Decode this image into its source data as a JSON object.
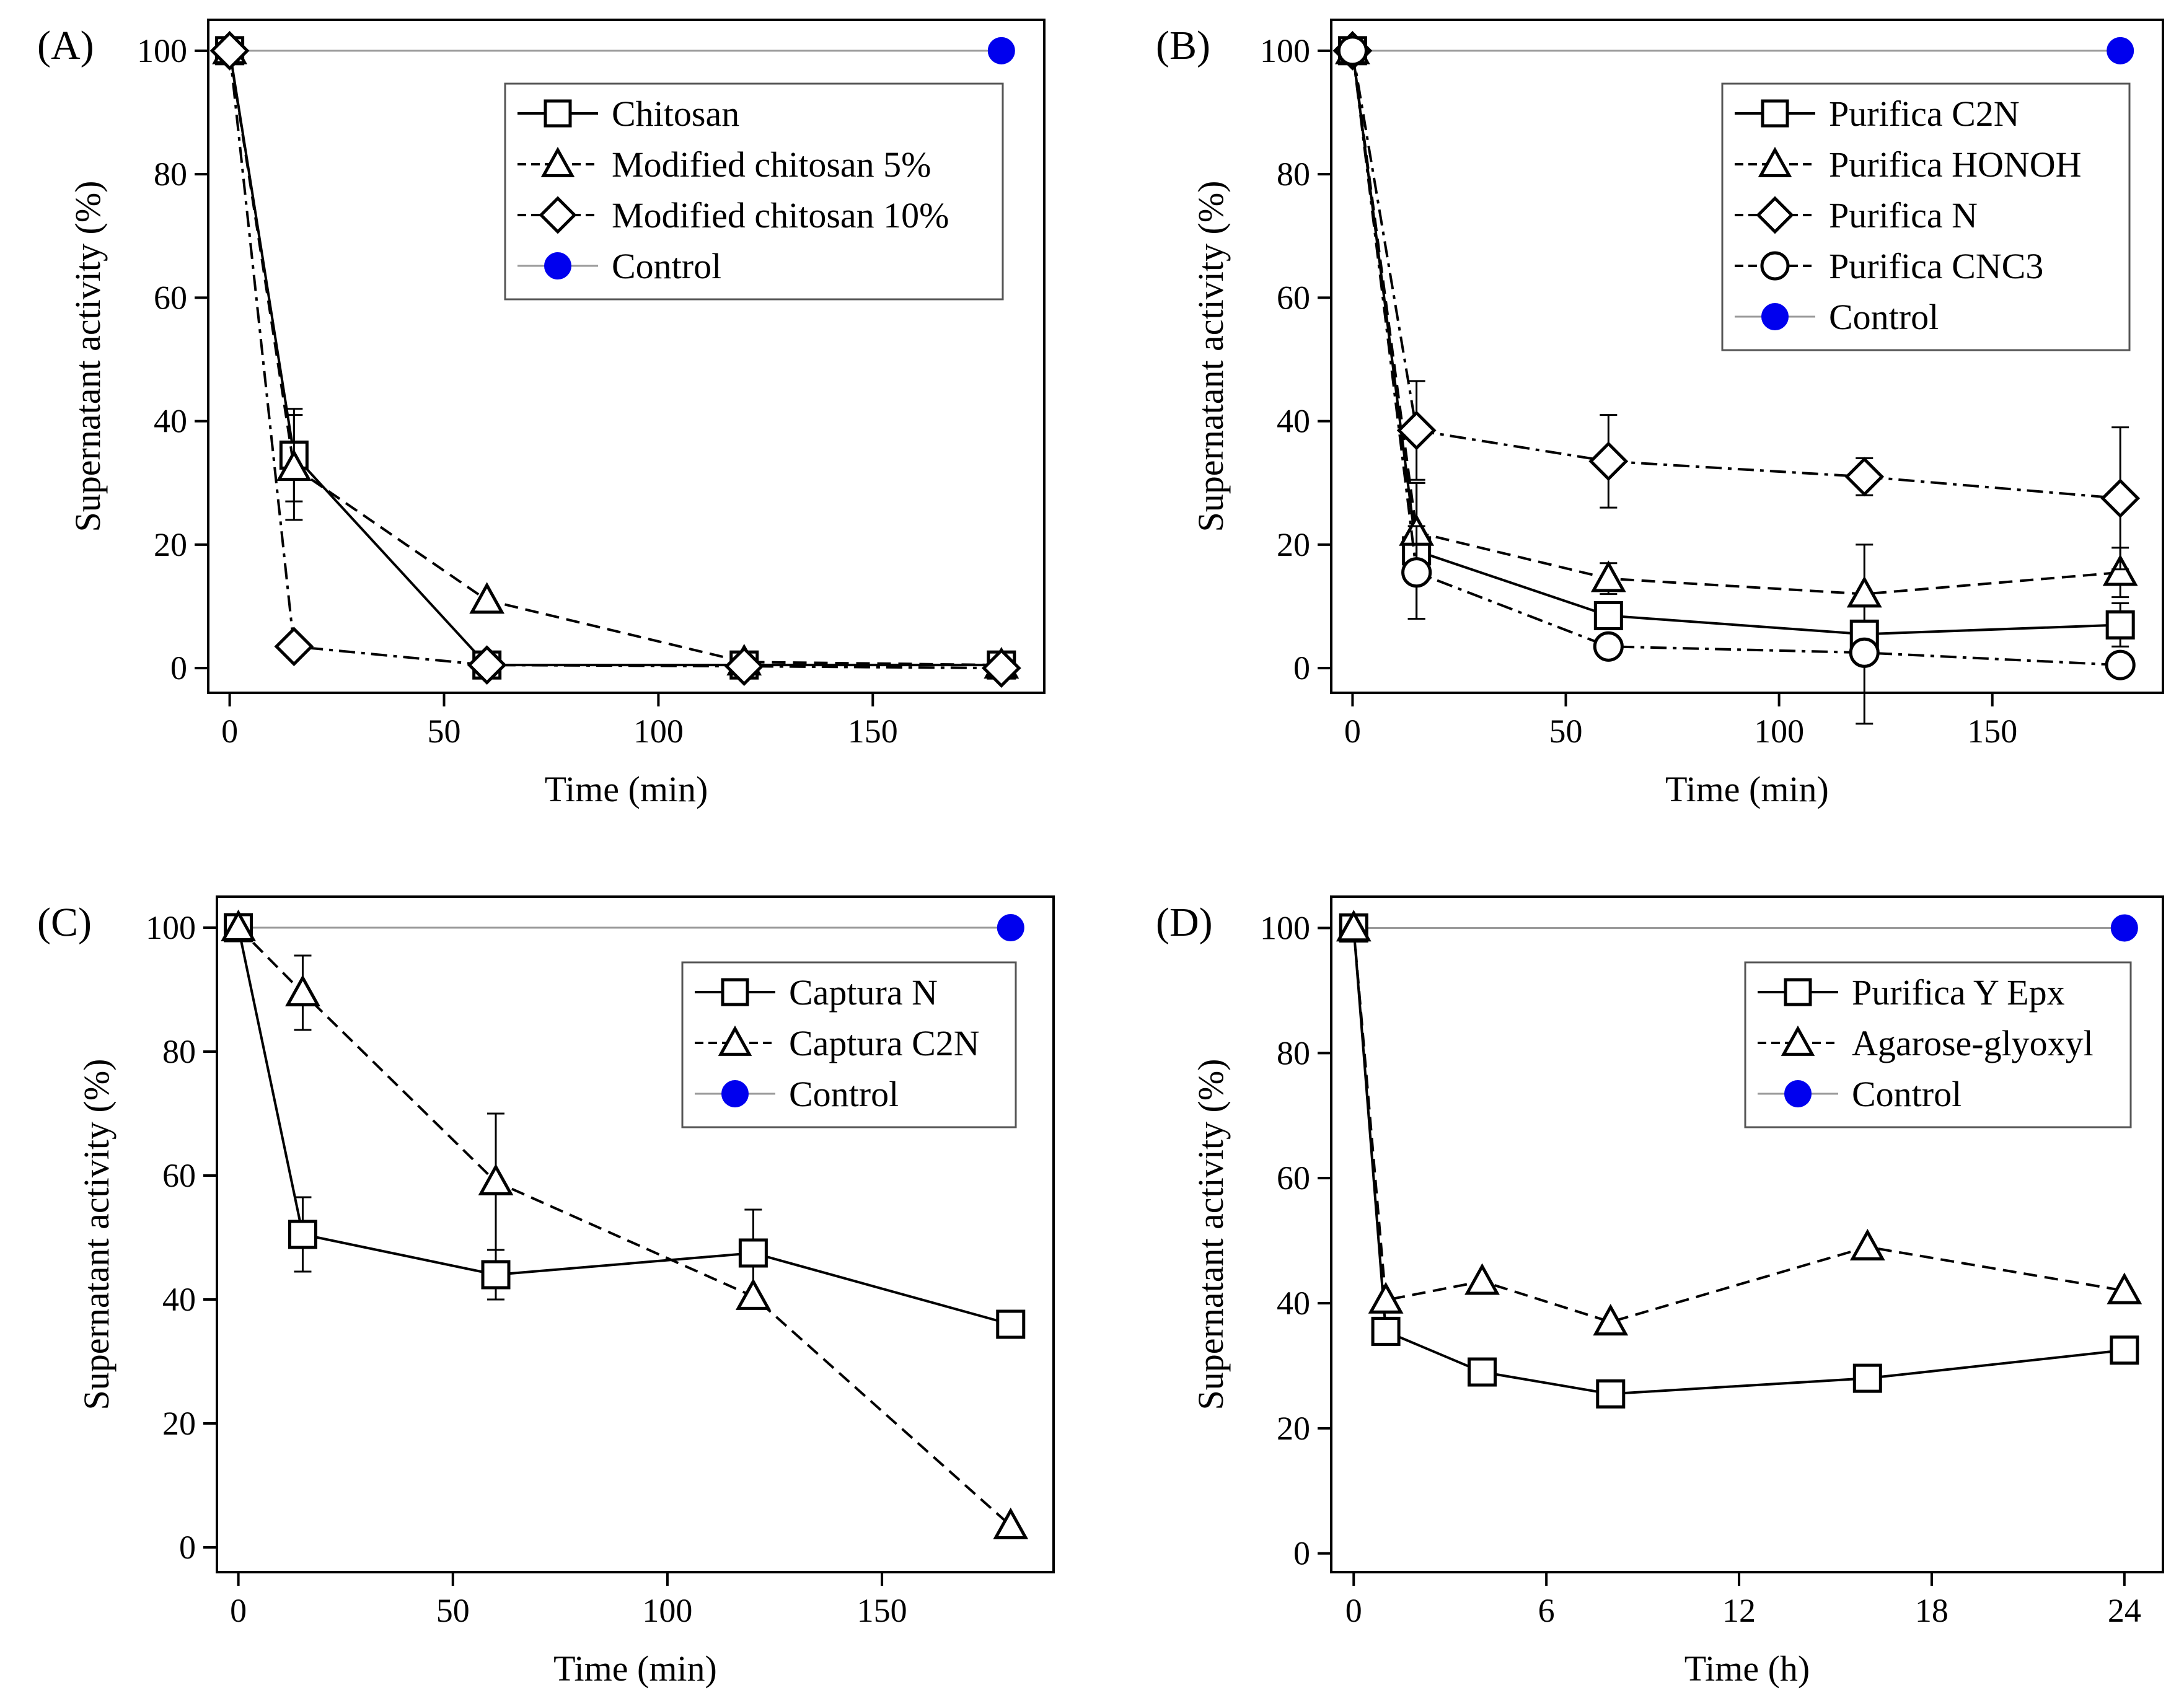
{
  "figure": {
    "panels": [
      "A",
      "B",
      "C",
      "D"
    ]
  },
  "colors": {
    "control": "#0000ee",
    "control_line": "#9a9a9a",
    "axis": "#000000",
    "marker_fill": "#ffffff"
  },
  "chart_data": [
    {
      "type": "line",
      "panel_label": "(A)",
      "xlabel": "Time (min)",
      "ylabel": "Supernatant activity (%)",
      "xlim": [
        -5,
        190
      ],
      "ylim": [
        -4,
        105
      ],
      "xticks": [
        0,
        50,
        100,
        150
      ],
      "yticks": [
        0,
        20,
        40,
        60,
        80,
        100
      ],
      "legend_position": "top-right",
      "series": [
        {
          "name": "Chitosan",
          "marker": "square",
          "line": "solid",
          "x": [
            0,
            15,
            60,
            120,
            180
          ],
          "y": [
            100,
            34.5,
            0.5,
            0.5,
            0.5
          ],
          "err": [
            0,
            7.5,
            0,
            0,
            0
          ]
        },
        {
          "name": "Modified chitosan 5%",
          "marker": "triangle",
          "line": "dashed",
          "x": [
            0,
            15,
            60,
            120,
            180
          ],
          "y": [
            100,
            32.5,
            11,
            1,
            0.5
          ],
          "err": [
            0,
            8.5,
            0,
            1,
            0
          ]
        },
        {
          "name": "Modified chitosan 10%",
          "marker": "diamond",
          "line": "dashdot",
          "x": [
            0,
            15,
            60,
            120,
            180
          ],
          "y": [
            100,
            3.5,
            0.5,
            0.3,
            0
          ],
          "err": [
            0,
            0,
            0,
            0,
            0
          ]
        },
        {
          "name": "Control",
          "marker": "filled-circle",
          "line": "thin",
          "x": [
            0,
            180
          ],
          "y": [
            100,
            100
          ],
          "err": [
            0,
            0
          ]
        }
      ]
    },
    {
      "type": "line",
      "panel_label": "(B)",
      "xlabel": "Time (min)",
      "ylabel": "Supernatant activity (%)",
      "xlim": [
        -5,
        190
      ],
      "ylim": [
        -4,
        105
      ],
      "xticks": [
        0,
        50,
        100,
        150
      ],
      "yticks": [
        0,
        20,
        40,
        60,
        80,
        100
      ],
      "legend_position": "top-right",
      "series": [
        {
          "name": "Purifica C2N",
          "marker": "square",
          "line": "solid",
          "x": [
            0,
            15,
            60,
            120,
            180
          ],
          "y": [
            100,
            19,
            8.5,
            5.5,
            7
          ],
          "err": [
            0,
            11,
            2,
            14.5,
            3.5
          ]
        },
        {
          "name": "Purifica HONOH",
          "marker": "triangle",
          "line": "dashed",
          "x": [
            0,
            15,
            60,
            120,
            180
          ],
          "y": [
            100,
            22,
            14.5,
            12,
            15.5
          ],
          "err": [
            0,
            8,
            2.5,
            0,
            4
          ]
        },
        {
          "name": "Purifica N",
          "marker": "diamond",
          "line": "dashdot",
          "x": [
            0,
            15,
            60,
            120,
            180
          ],
          "y": [
            100,
            38.5,
            33.5,
            31,
            27.5
          ],
          "err": [
            0,
            8,
            7.5,
            3,
            11.5
          ]
        },
        {
          "name": "Purifica CNC3",
          "marker": "circle",
          "line": "dashdot",
          "x": [
            0,
            15,
            60,
            120,
            180
          ],
          "y": [
            100,
            15.5,
            3.5,
            2.5,
            0.5
          ],
          "err": [
            0,
            7.5,
            0,
            0,
            0
          ]
        },
        {
          "name": "Control",
          "marker": "filled-circle",
          "line": "thin",
          "x": [
            0,
            180
          ],
          "y": [
            100,
            100
          ],
          "err": [
            0,
            0
          ]
        }
      ]
    },
    {
      "type": "line",
      "panel_label": "(C)",
      "xlabel": "Time (min)",
      "ylabel": "Supernatant activity (%)",
      "xlim": [
        -5,
        190
      ],
      "ylim": [
        -4,
        105
      ],
      "xticks": [
        0,
        50,
        100,
        150
      ],
      "yticks": [
        0,
        20,
        40,
        60,
        80,
        100
      ],
      "legend_position": "top-right",
      "series": [
        {
          "name": "Captura N",
          "marker": "square",
          "line": "solid",
          "x": [
            0,
            15,
            60,
            120,
            180
          ],
          "y": [
            100,
            50.5,
            44,
            47.5,
            36
          ],
          "err": [
            0,
            6,
            4,
            7,
            0
          ]
        },
        {
          "name": "Captura C2N",
          "marker": "triangle",
          "line": "dashed",
          "x": [
            0,
            15,
            60,
            120,
            180
          ],
          "y": [
            100,
            89.5,
            59,
            40.5,
            3.5
          ],
          "err": [
            0,
            6,
            11,
            0,
            0
          ]
        },
        {
          "name": "Control",
          "marker": "filled-circle",
          "line": "thin",
          "x": [
            0,
            180
          ],
          "y": [
            100,
            100
          ],
          "err": [
            0,
            0
          ]
        }
      ]
    },
    {
      "type": "line",
      "panel_label": "(D)",
      "xlabel": "Time (h)",
      "ylabel": "Supernatant activity (%)",
      "xlim": [
        -0.7,
        25.2
      ],
      "ylim": [
        -3,
        105
      ],
      "xticks": [
        0,
        6,
        12,
        18,
        24
      ],
      "yticks": [
        0,
        20,
        40,
        60,
        80,
        100
      ],
      "legend_position": "top-right",
      "series": [
        {
          "name": "Purifica Y Epx",
          "marker": "square",
          "line": "solid",
          "x": [
            0,
            1,
            4,
            8,
            16,
            24
          ],
          "y": [
            100,
            35.5,
            29,
            25.5,
            28,
            32.5
          ],
          "err": [
            0,
            0,
            0,
            0,
            0,
            0
          ]
        },
        {
          "name": "Agarose-glyoxyl",
          "marker": "triangle",
          "line": "dashed",
          "x": [
            0,
            1,
            4,
            8,
            16,
            24
          ],
          "y": [
            100,
            40.5,
            43.5,
            37,
            49,
            42
          ],
          "err": [
            0,
            0,
            0,
            0,
            0,
            0
          ]
        },
        {
          "name": "Control",
          "marker": "filled-circle",
          "line": "thin",
          "x": [
            0,
            24
          ],
          "y": [
            100,
            100
          ],
          "err": [
            0,
            0
          ]
        }
      ]
    }
  ]
}
